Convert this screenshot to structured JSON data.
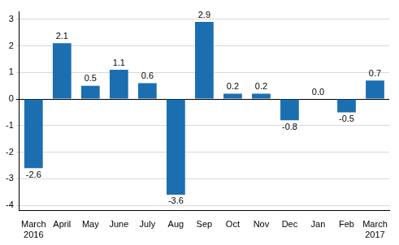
{
  "chart_data": {
    "type": "bar",
    "categories": [
      [
        "March",
        "2016"
      ],
      "April",
      "May",
      "June",
      "July",
      "Aug",
      "Sep",
      "Oct",
      "Nov",
      "Dec",
      "Jan",
      "Feb",
      [
        "March",
        "2017"
      ]
    ],
    "values": [
      -2.6,
      2.1,
      0.5,
      1.1,
      0.6,
      -3.6,
      2.9,
      0.2,
      0.2,
      -0.8,
      0.0,
      -0.5,
      0.7
    ],
    "value_labels": [
      "-2.6",
      "2.1",
      "0.5",
      "1.1",
      "0.6",
      "-3.6",
      "2.9",
      "0.2",
      "0.2",
      "-0.8",
      "0.0",
      "-0.5",
      "0.7"
    ],
    "color": "#1b6fb0",
    "ylim": [
      -4.2,
      3.3
    ],
    "yticks": [
      -4,
      -3,
      -2,
      -1,
      0,
      1,
      2,
      3
    ],
    "grid": true,
    "data_labels": true
  }
}
